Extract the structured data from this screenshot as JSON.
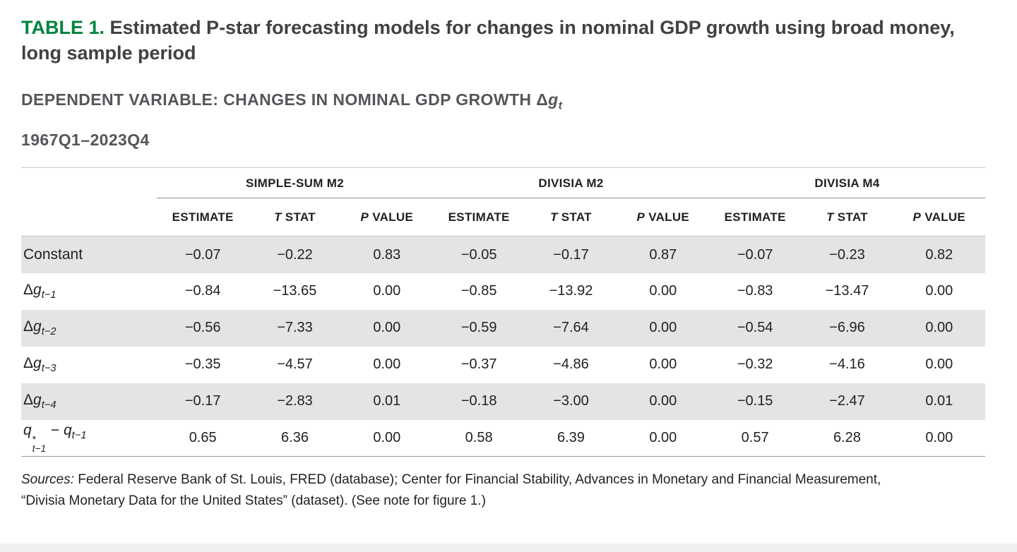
{
  "accent_color": "#00843d",
  "row_shade_color": "#e4e4e4",
  "title": {
    "label": "TABLE 1.",
    "text": " Estimated P-star forecasting models for changes in nominal GDP growth using broad money, long sample period"
  },
  "dependent_variable": {
    "parts": [
      {
        "t": "DEPENDENT VARIABLE: CHANGES IN NOMINAL GDP GROWTH "
      },
      {
        "t": "Δ"
      },
      {
        "t": "g",
        "italic": true
      },
      {
        "t": "t",
        "sub": true,
        "italic": true
      }
    ]
  },
  "period": "1967Q1–2023Q4",
  "table": {
    "groups": [
      {
        "label": "SIMPLE-SUM M2"
      },
      {
        "label": "DIVISIA M2"
      },
      {
        "label": "DIVISIA M4"
      }
    ],
    "columns": [
      {
        "parts": [
          {
            "t": "ESTIMATE"
          }
        ]
      },
      {
        "parts": [
          {
            "t": "T",
            "italic": true
          },
          {
            "t": " STAT"
          }
        ]
      },
      {
        "parts": [
          {
            "t": "P",
            "italic": true
          },
          {
            "t": " VALUE"
          }
        ]
      }
    ],
    "rows": [
      {
        "name": "constant",
        "label_parts": [
          {
            "t": "Constant"
          }
        ],
        "values": [
          "−0.07",
          "−0.22",
          "0.83",
          "−0.05",
          "−0.17",
          "0.87",
          "−0.07",
          "−0.23",
          "0.82"
        ]
      },
      {
        "name": "delta-g-t-1",
        "label_parts": [
          {
            "t": "Δ"
          },
          {
            "t": "g",
            "italic": true
          },
          {
            "t": "t−1",
            "sub": true,
            "italic": true
          }
        ],
        "values": [
          "−0.84",
          "−13.65",
          "0.00",
          "−0.85",
          "−13.92",
          "0.00",
          "−0.83",
          "−13.47",
          "0.00"
        ]
      },
      {
        "name": "delta-g-t-2",
        "label_parts": [
          {
            "t": "Δ"
          },
          {
            "t": "g",
            "italic": true
          },
          {
            "t": "t−2",
            "sub": true,
            "italic": true
          }
        ],
        "values": [
          "−0.56",
          "−7.33",
          "0.00",
          "−0.59",
          "−7.64",
          "0.00",
          "−0.54",
          "−6.96",
          "0.00"
        ]
      },
      {
        "name": "delta-g-t-3",
        "label_parts": [
          {
            "t": "Δ"
          },
          {
            "t": "g",
            "italic": true
          },
          {
            "t": "t−3",
            "sub": true,
            "italic": true
          }
        ],
        "values": [
          "−0.35",
          "−4.57",
          "0.00",
          "−0.37",
          "−4.86",
          "0.00",
          "−0.32",
          "−4.16",
          "0.00"
        ]
      },
      {
        "name": "delta-g-t-4",
        "label_parts": [
          {
            "t": "Δ"
          },
          {
            "t": "g",
            "italic": true
          },
          {
            "t": "t−4",
            "sub": true,
            "italic": true
          }
        ],
        "values": [
          "−0.17",
          "−2.83",
          "0.01",
          "−0.18",
          "−3.00",
          "0.00",
          "−0.15",
          "−2.47",
          "0.01"
        ]
      },
      {
        "name": "q-star-gap",
        "label_parts": [
          {
            "t": "q",
            "italic": true
          },
          {
            "supsub": true,
            "sup": "*",
            "sub": "t−1"
          },
          {
            "t": " − "
          },
          {
            "t": "q",
            "italic": true
          },
          {
            "t": "t−1",
            "sub": true,
            "italic": true
          }
        ],
        "values": [
          "0.65",
          "6.36",
          "0.00",
          "0.58",
          "6.39",
          "0.00",
          "0.57",
          "6.28",
          "0.00"
        ]
      }
    ]
  },
  "sources": {
    "label": "Sources:",
    "text": " Federal Reserve Bank of St. Louis, FRED (database); Center for Financial Stability, Advances in Monetary and Financial Measurement, “Divisia Monetary Data for the United States” (dataset). (See note for figure 1.)"
  }
}
